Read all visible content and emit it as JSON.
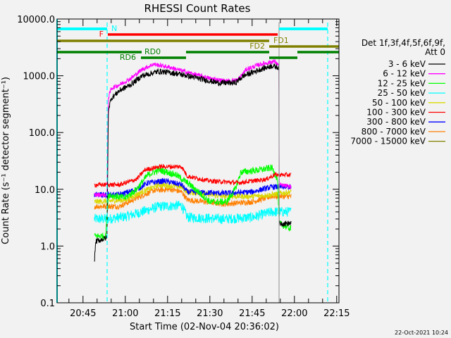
{
  "chart_data": {
    "type": "line",
    "title": "RHESSI Count Rates",
    "xlabel": "Start Time (02-Nov-04 20:36:02)",
    "ylabel": "Count Rate (s⁻¹ detector segment⁻¹)",
    "x_units": "minutes after 20:00 UT",
    "xlim": [
      35.8,
      135.8
    ],
    "ylim": [
      0.1,
      10000
    ],
    "yscale": "log",
    "x_ticks": [
      {
        "value": 45,
        "label": "20:45"
      },
      {
        "value": 60,
        "label": "21:00"
      },
      {
        "value": 75,
        "label": "21:15"
      },
      {
        "value": 90,
        "label": "21:30"
      },
      {
        "value": 105,
        "label": "21:45"
      },
      {
        "value": 120,
        "label": "22:00"
      },
      {
        "value": 135,
        "label": "22:15"
      }
    ],
    "y_ticks": [
      {
        "value": 10000,
        "label": "10000.0"
      },
      {
        "value": 1000,
        "label": "1000.0"
      },
      {
        "value": 100,
        "label": "100.0"
      },
      {
        "value": 10,
        "label": "10.0"
      },
      {
        "value": 1,
        "label": "1.0"
      },
      {
        "value": 0.1,
        "label": "0.1"
      }
    ],
    "legend": {
      "placement": "right",
      "header": [
        "Det 1f,3f,4f,5f,6f,9f,",
        "Att 0"
      ]
    },
    "series": [
      {
        "name": "3 - 6 keV",
        "color": "#000000",
        "noise": 0.05,
        "points": [
          [
            49,
            0.5
          ],
          [
            49.5,
            1.2
          ],
          [
            53.5,
            1.4
          ],
          [
            54,
            250
          ],
          [
            55,
            400
          ],
          [
            58,
            550
          ],
          [
            62,
            700
          ],
          [
            66,
            1000
          ],
          [
            72,
            1200
          ],
          [
            78,
            1100
          ],
          [
            82,
            1000
          ],
          [
            88,
            850
          ],
          [
            93,
            750
          ],
          [
            99,
            750
          ],
          [
            102,
            1000
          ],
          [
            108,
            1300
          ],
          [
            112,
            1500
          ],
          [
            114.5,
            1400
          ],
          [
            114.6,
            2.5
          ],
          [
            118.8,
            2.5
          ]
        ]
      },
      {
        "name": "6 - 12 keV",
        "color": "#ff00ff",
        "noise": 0.04,
        "points": [
          [
            49,
            8
          ],
          [
            53.5,
            8
          ],
          [
            54,
            400
          ],
          [
            55,
            600
          ],
          [
            58,
            700
          ],
          [
            62,
            900
          ],
          [
            66,
            1300
          ],
          [
            70,
            1600
          ],
          [
            76,
            1400
          ],
          [
            82,
            1150
          ],
          [
            90,
            900
          ],
          [
            96,
            800
          ],
          [
            100,
            850
          ],
          [
            103,
            1300
          ],
          [
            108,
            1600
          ],
          [
            113,
            1800
          ],
          [
            114.5,
            1500
          ],
          [
            114.6,
            12
          ],
          [
            118.8,
            11
          ]
        ]
      },
      {
        "name": "12 - 25 keV",
        "color": "#00ff00",
        "noise": 0.06,
        "points": [
          [
            49,
            1.5
          ],
          [
            53,
            1.5
          ],
          [
            54,
            8
          ],
          [
            60,
            7
          ],
          [
            64,
            10
          ],
          [
            68,
            18
          ],
          [
            72,
            22
          ],
          [
            78,
            18
          ],
          [
            82,
            13
          ],
          [
            86,
            9
          ],
          [
            90,
            6
          ],
          [
            96,
            6
          ],
          [
            99,
            10
          ],
          [
            101,
            20
          ],
          [
            108,
            22
          ],
          [
            112,
            24
          ],
          [
            114,
            15
          ],
          [
            114.6,
            2.5
          ],
          [
            118.8,
            2
          ]
        ]
      },
      {
        "name": "25 - 50 keV",
        "color": "#00ffff",
        "noise": 0.09,
        "points": [
          [
            49,
            3
          ],
          [
            54,
            3
          ],
          [
            60,
            3.3
          ],
          [
            66,
            4
          ],
          [
            72,
            5
          ],
          [
            80,
            5.2
          ],
          [
            82,
            3.2
          ],
          [
            95,
            3
          ],
          [
            105,
            3.2
          ],
          [
            112,
            4
          ],
          [
            118.8,
            4
          ]
        ]
      },
      {
        "name": "50 - 100 keV",
        "color": "#d8d800",
        "noise": 0.05,
        "points": [
          [
            49,
            6
          ],
          [
            60,
            6.5
          ],
          [
            66,
            9
          ],
          [
            72,
            12
          ],
          [
            80,
            11
          ],
          [
            82,
            9
          ],
          [
            95,
            7.5
          ],
          [
            105,
            7.5
          ],
          [
            112,
            8
          ],
          [
            118.8,
            9
          ]
        ]
      },
      {
        "name": "100 - 300 keV",
        "color": "#ff0000",
        "noise": 0.04,
        "points": [
          [
            49,
            12
          ],
          [
            58,
            12
          ],
          [
            64,
            15
          ],
          [
            67,
            22
          ],
          [
            72,
            25
          ],
          [
            80,
            25
          ],
          [
            82,
            17
          ],
          [
            90,
            14
          ],
          [
            100,
            13
          ],
          [
            110,
            15
          ],
          [
            113,
            18
          ],
          [
            118.8,
            18
          ]
        ]
      },
      {
        "name": "300 - 800 keV",
        "color": "#0000ff",
        "noise": 0.05,
        "points": [
          [
            49,
            8
          ],
          [
            58,
            8
          ],
          [
            64,
            10
          ],
          [
            68,
            13
          ],
          [
            74,
            14
          ],
          [
            80,
            12
          ],
          [
            82,
            9
          ],
          [
            95,
            8.5
          ],
          [
            105,
            9
          ],
          [
            112,
            11
          ],
          [
            118.8,
            11
          ]
        ]
      },
      {
        "name": "800 - 7000 keV",
        "color": "#ff8000",
        "noise": 0.05,
        "points": [
          [
            49,
            5
          ],
          [
            58,
            5
          ],
          [
            64,
            7
          ],
          [
            70,
            9.5
          ],
          [
            76,
            10
          ],
          [
            80,
            9
          ],
          [
            82,
            6.5
          ],
          [
            95,
            5.5
          ],
          [
            105,
            6
          ],
          [
            112,
            7.5
          ],
          [
            118.8,
            7.5
          ]
        ]
      },
      {
        "name": "7000 - 15000 keV",
        "color": "#808000",
        "noise": 0.05,
        "points": []
      }
    ],
    "state_bars": [
      {
        "label": "N",
        "color": "#00ffff",
        "segments": [
          [
            35.8,
            53.55
          ],
          [
            114.55,
            131.8
          ]
        ]
      },
      {
        "label": "F",
        "color": "#ff0000",
        "segments": [
          [
            53.8,
            114.05
          ]
        ]
      },
      {
        "label": "FD1",
        "color": "#808000",
        "segments": [
          [
            35.8,
            111.05
          ]
        ]
      },
      {
        "label": "FD2",
        "color": "#808000",
        "segments": [
          [
            111.05,
            135.8
          ]
        ]
      },
      {
        "label": "RD0",
        "color": "#008000",
        "segments": [
          [
            35.8,
            65.8
          ],
          [
            81.55,
            111.05
          ],
          [
            121.05,
            135.8
          ]
        ]
      },
      {
        "label": "RD6",
        "color": "#008000",
        "segments": [
          [
            65.55,
            81.55
          ],
          [
            111.05,
            121.05
          ]
        ]
      }
    ],
    "vertical_lines": [
      {
        "time": 53.55,
        "color": "#00ffff",
        "style": "dashed"
      },
      {
        "time": 131.8,
        "color": "#00ffff",
        "style": "dashed"
      },
      {
        "time": 114.55,
        "color": "#a0a0a0",
        "style": "solid"
      }
    ]
  },
  "footer": {
    "timestamp": "22-Oct-2021 10:24"
  }
}
